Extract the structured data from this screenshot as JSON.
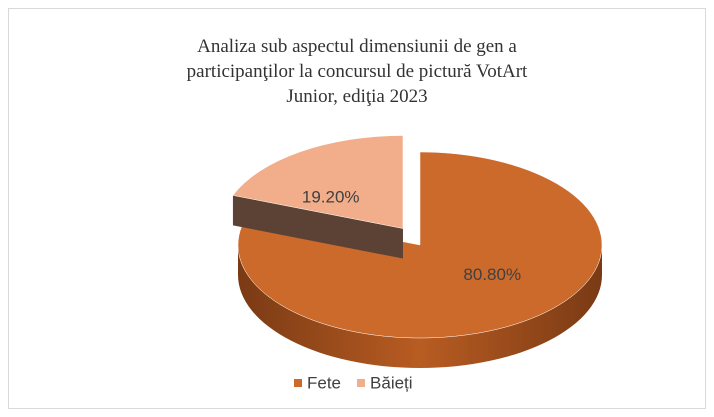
{
  "chart_data": {
    "type": "pie",
    "title": "Analiza sub aspectul dimensiunii de gen a participanţilor la concursul de pictură VotArt Junior, ediţia 2023",
    "categories": [
      "Fete",
      "Băieți"
    ],
    "values": [
      80.8,
      19.2
    ],
    "value_labels": [
      "80.80%",
      "19.20%"
    ],
    "colors": [
      "#CC6A2B",
      "#F2AE8B"
    ],
    "legend": "bottom",
    "three_d": true
  }
}
